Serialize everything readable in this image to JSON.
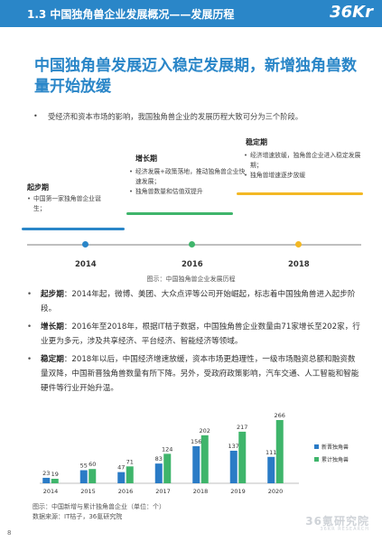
{
  "header": {
    "title": "1.3 中国独角兽企业发展概况——发展历程",
    "logo": "36Kr"
  },
  "headline": "中国独角兽发展迈入稳定发展期，新增独角兽数量开始放缓",
  "intro": "受经济和资本市场的影响，我国独角兽企业的发展历程大致可分为三个阶段。",
  "stages": [
    {
      "title": "起步期",
      "items": [
        "中国第一家独角兽企业诞生；"
      ],
      "color": "#2a86c8"
    },
    {
      "title": "增长期",
      "items": [
        "经济发展+政策落地，推动独角兽企业快速发展；",
        "独角兽数量和估值双提升"
      ],
      "color": "#3fb56b"
    },
    {
      "title": "稳定期",
      "items": [
        "经济增速放缓，独角兽企业进入稳定发展期；",
        "独角兽增速逐步放缓"
      ],
      "color": "#f3b824"
    }
  ],
  "timeline": {
    "years": [
      "2014",
      "2016",
      "2018"
    ],
    "dot_colors": [
      "#2a86c8",
      "#3fb56b",
      "#f3b824"
    ],
    "caption": "图示：中国独角兽企业发展历程"
  },
  "paragraphs": [
    {
      "label": "起步期",
      "text": "：2014年起，微博、美团、大众点评等公司开始崛起，标志着中国独角兽进入起步阶段。"
    },
    {
      "label": "增长期",
      "text": "：2016年至2018年，根据IT桔子数据，中国独角兽企业数量由71家增长至202家，行业更为多元，涉及共享经济、平台经济、智能经济等领域。"
    },
    {
      "label": "稳定期",
      "text": "：2018年以后，中国经济增速放缓，资本市场更趋理性，一级市场融资总额和融资数量双降，中国新晋独角兽数量有所下降。另外，受政府政策影响，汽车交通、人工智能和智能硬件等行业开始升温。"
    }
  ],
  "chart_data": {
    "type": "bar",
    "categories": [
      "2014",
      "2015",
      "2016",
      "2017",
      "2018",
      "2019",
      "2020"
    ],
    "series": [
      {
        "name": "新晋独角兽",
        "values": [
          23,
          55,
          47,
          83,
          156,
          137,
          111
        ],
        "color": "#2a7bc6"
      },
      {
        "name": "累计独角兽",
        "values": [
          19,
          60,
          71,
          124,
          202,
          217,
          266
        ],
        "color": "#3fb56b"
      }
    ],
    "legend_position": "right"
  },
  "chart_caption": {
    "line1": "图示：中国新增与累计独角兽企业（单位：个）",
    "line2": "数据来源：IT桔子，36氪研究院"
  },
  "footer": {
    "page": "8",
    "logo": "36氪研究院",
    "logo_sub": "36KR RESEARCH"
  }
}
